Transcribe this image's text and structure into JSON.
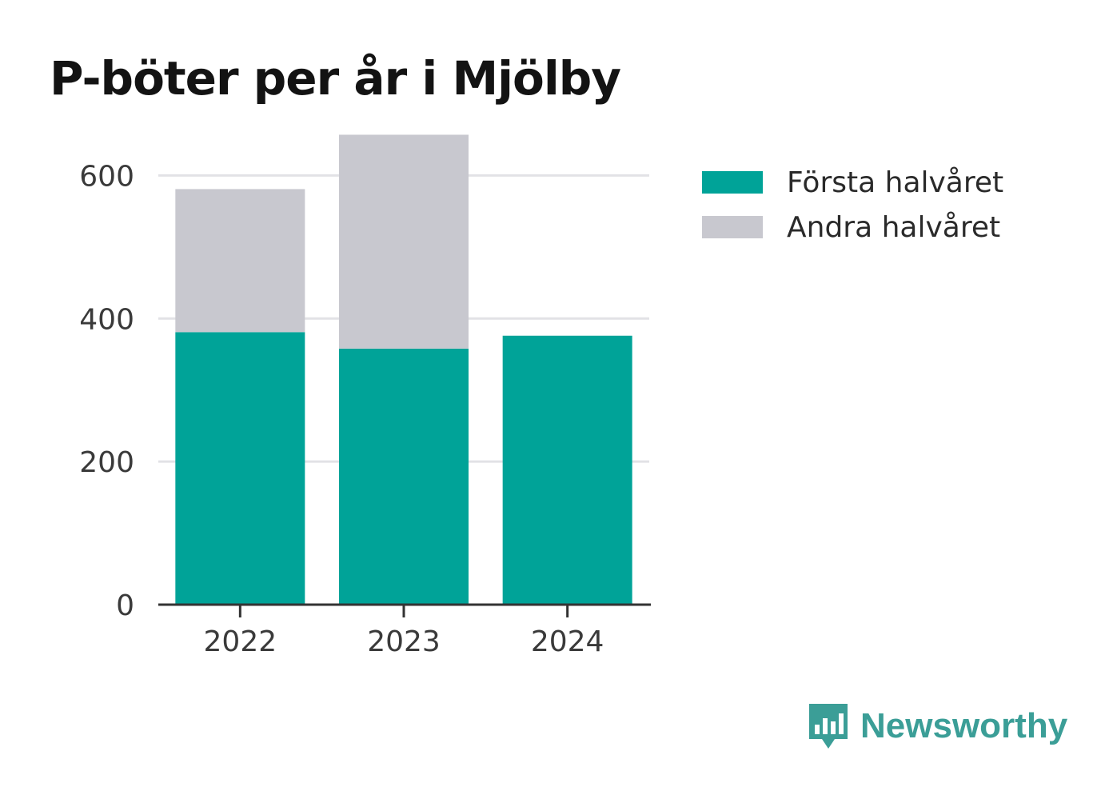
{
  "chart_data": {
    "type": "bar",
    "stacked": true,
    "title": "P-böter per år i Mjölby",
    "categories": [
      "2022",
      "2023",
      "2024"
    ],
    "series": [
      {
        "name": "Första halvåret",
        "color": "#00a398",
        "values": [
          381,
          358,
          376
        ]
      },
      {
        "name": "Andra halvåret",
        "color": "#c8c8cf",
        "values": [
          200,
          299,
          0
        ]
      }
    ],
    "yticks": [
      "0",
      "200",
      "400",
      "600"
    ],
    "ylim": [
      0,
      700
    ],
    "grid": true,
    "legend_position": "top-right"
  },
  "brand": {
    "name": "Newsworthy",
    "icon": "newsworthy-logo-icon"
  }
}
